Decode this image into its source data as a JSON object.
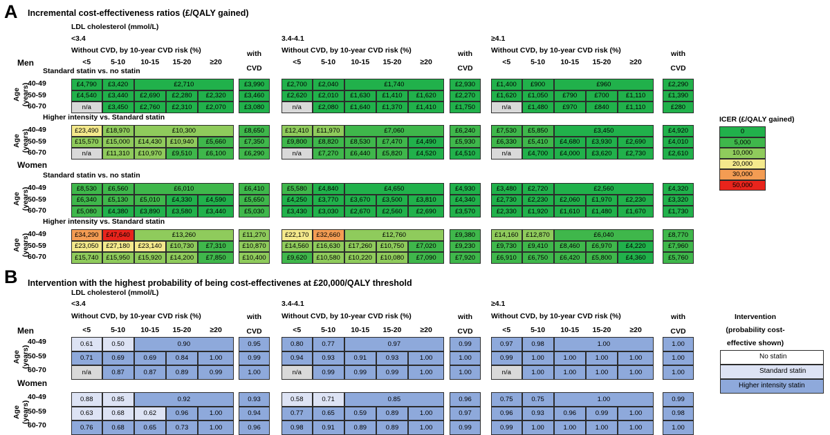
{
  "colors": {
    "na": "#d9d9d9",
    "icer_scale": [
      "#21b14b",
      "#3fb74b",
      "#8fcb5c",
      "#f4e98c",
      "#f39c53",
      "#e8241c"
    ],
    "intervention": {
      "none": "#ffffff",
      "standard": "#dde3f4",
      "higher": "#8ea9db"
    }
  },
  "chart_data": [
    {
      "type": "heatmap",
      "panel_letter": "A",
      "title": "Incremental cost-effectiveness ratios (£/QALY gained)",
      "ldl_label": "LDL cholesterol (mmol/L)",
      "ldl_groups": [
        "<3.4",
        "3.4-4.1",
        "≥4.1"
      ],
      "risk_header": "Without CVD, by 10-year CVD risk (%)",
      "risk_columns": [
        "<5",
        "5-10",
        "10-15",
        "15-20",
        "≥20"
      ],
      "with_cvd_label": [
        "with",
        "CVD"
      ],
      "age_groups": [
        "40-49",
        "50-59",
        "60-70"
      ],
      "age_label": [
        "Age",
        "(years)"
      ],
      "legend": {
        "title": "ICER (£/QALY gained)",
        "bins": [
          "0",
          "5,000",
          "10,000",
          "20,000",
          "30,000",
          "50,000"
        ]
      },
      "blocks": [
        {
          "sex": "Men",
          "comparison": "Standard statin vs. no statin",
          "groups": [
            [
              [
                "£4,790",
                "£3,420",
                "£2,710",
                null,
                null,
                "£3,990"
              ],
              [
                "£4,540",
                "£3,440",
                "£2,690",
                "£2,280",
                "£2,320",
                "£3,460"
              ],
              [
                "n/a",
                "£3,450",
                "£2,760",
                "£2,310",
                "£2,070",
                "£3,080"
              ]
            ],
            [
              [
                "£2,700",
                "£2,040",
                "£1,740",
                null,
                null,
                "£2,930"
              ],
              [
                "£2,620",
                "£2,010",
                "£1,630",
                "£1,410",
                "£1,620",
                "£2,270"
              ],
              [
                "n/a",
                "£2,080",
                "£1,640",
                "£1,370",
                "£1,410",
                "£1,750"
              ]
            ],
            [
              [
                "£1,400",
                "£900",
                "£960",
                null,
                null,
                "£2,290"
              ],
              [
                "£1,620",
                "£1,050",
                "£790",
                "£700",
                "£1,110",
                "£1,390"
              ],
              [
                "n/a",
                "£1,480",
                "£970",
                "£840",
                "£1,110",
                "£280"
              ]
            ]
          ]
        },
        {
          "sex": "",
          "comparison": "Higher intensity vs. Standard statin",
          "groups": [
            [
              [
                "£23,490",
                "£18,970",
                "£10,300",
                null,
                null,
                "£8,650"
              ],
              [
                "£15,570",
                "£15,000",
                "£14,430",
                "£10,940",
                "£5,660",
                "£7,350"
              ],
              [
                "n/a",
                "£11,310",
                "£10,970",
                "£9,510",
                "£6,100",
                "£6,290"
              ]
            ],
            [
              [
                "£12,410",
                "£11,970",
                "£7,060",
                null,
                null,
                "£6,240"
              ],
              [
                "£9,800",
                "£8,820",
                "£8,530",
                "£7,470",
                "£4,490",
                "£5,930"
              ],
              [
                "n/a",
                "£7,270",
                "£6,440",
                "£5,820",
                "£4,520",
                "£4,510"
              ]
            ],
            [
              [
                "£7,530",
                "£5,850",
                "£3,450",
                null,
                null,
                "£4,920"
              ],
              [
                "£6,330",
                "£5,410",
                "£4,680",
                "£3,930",
                "£2,690",
                "£4,010"
              ],
              [
                "n/a",
                "£4,700",
                "£4,000",
                "£3,620",
                "£2,730",
                "£2,610"
              ]
            ]
          ]
        },
        {
          "sex": "Women",
          "comparison": "Standard statin vs. no statin",
          "groups": [
            [
              [
                "£8,530",
                "£6,560",
                "£6,010",
                null,
                null,
                "£6,410"
              ],
              [
                "£6,340",
                "£5,130",
                "£5,010",
                "£4,330",
                "£4,590",
                "£5,650"
              ],
              [
                "£5,080",
                "£4,380",
                "£3,890",
                "£3,580",
                "£3,440",
                "£5,030"
              ]
            ],
            [
              [
                "£5,580",
                "£4,840",
                "£4,650",
                null,
                null,
                "£4,930"
              ],
              [
                "£4,250",
                "£3,770",
                "£3,670",
                "£3,500",
                "£3,810",
                "£4,340"
              ],
              [
                "£3,430",
                "£3,030",
                "£2,670",
                "£2,560",
                "£2,690",
                "£3,570"
              ]
            ],
            [
              [
                "£3,480",
                "£2,720",
                "£2,560",
                null,
                null,
                "£4,320"
              ],
              [
                "£2,730",
                "£2,230",
                "£2,060",
                "£1,970",
                "£2,230",
                "£3,320"
              ],
              [
                "£2,330",
                "£1,920",
                "£1,610",
                "£1,480",
                "£1,670",
                "£1,730"
              ]
            ]
          ]
        },
        {
          "sex": "",
          "comparison": "Higher intensity vs. Standard statin",
          "groups": [
            [
              [
                "£34,290",
                "£47,640",
                "£13,260",
                null,
                null,
                "£11,270"
              ],
              [
                "£23,050",
                "£27,180",
                "£23,140",
                "£10,730",
                "£7,310",
                "£10,870"
              ],
              [
                "£15,740",
                "£15,950",
                "£15,920",
                "£14,200",
                "£7,850",
                "£10,400"
              ]
            ],
            [
              [
                "£22,170",
                "£32,660",
                "£12,760",
                null,
                null,
                "£9,380"
              ],
              [
                "£14,560",
                "£16,630",
                "£17,260",
                "£10,750",
                "£7,020",
                "£9,230"
              ],
              [
                "£9,620",
                "£10,580",
                "£10,220",
                "£10,080",
                "£7,090",
                "£7,920"
              ]
            ],
            [
              [
                "£14,160",
                "£12,870",
                "£6,040",
                null,
                null,
                "£8,770"
              ],
              [
                "£9,730",
                "£9,410",
                "£8,460",
                "£6,970",
                "£4,220",
                "£7,960"
              ],
              [
                "£6,910",
                "£6,750",
                "£6,420",
                "£5,800",
                "£4,360",
                "£5,760"
              ]
            ]
          ]
        }
      ]
    },
    {
      "type": "heatmap",
      "panel_letter": "B",
      "title": "Intervention with the highest probability of being cost-effectivenes at £20,000/QALY threshold",
      "ldl_label": "LDL cholesterol (mmol/L)",
      "ldl_groups": [
        "<3.4",
        "3.4-4.1",
        "≥4.1"
      ],
      "risk_header": "Without CVD, by 10-year CVD risk (%)",
      "risk_columns": [
        "<5",
        "5-10",
        "10-15",
        "15-20",
        "≥20"
      ],
      "with_cvd_label": [
        "with",
        "CVD"
      ],
      "age_groups": [
        "40-49",
        "50-59",
        "60-70"
      ],
      "age_label": [
        "Age",
        "(years)"
      ],
      "legend": {
        "title": [
          "Intervention",
          "(probability cost-",
          "effective shown)"
        ],
        "items": [
          "No statin",
          "Standard statin",
          "Higher intensity statin"
        ]
      },
      "blocks": [
        {
          "sex": "Men",
          "groups": [
            [
              [
                [
                  "0.61",
                  "S"
                ],
                [
                  "0.50",
                  "S"
                ],
                [
                  "0.90",
                  "H"
                ],
                null,
                null,
                [
                  "0.95",
                  "H"
                ]
              ],
              [
                [
                  "0.71",
                  "H"
                ],
                [
                  "0.69",
                  "H"
                ],
                [
                  "0.69",
                  "H"
                ],
                [
                  "0.84",
                  "H"
                ],
                [
                  "1.00",
                  "H"
                ],
                [
                  "0.99",
                  "H"
                ]
              ],
              [
                [
                  "n/a",
                  "NA"
                ],
                [
                  "0.87",
                  "H"
                ],
                [
                  "0.87",
                  "H"
                ],
                [
                  "0.89",
                  "H"
                ],
                [
                  "0.99",
                  "H"
                ],
                [
                  "1.00",
                  "H"
                ]
              ]
            ],
            [
              [
                [
                  "0.80",
                  "H"
                ],
                [
                  "0.77",
                  "H"
                ],
                [
                  "0.97",
                  "H"
                ],
                null,
                null,
                [
                  "0.99",
                  "H"
                ]
              ],
              [
                [
                  "0.94",
                  "H"
                ],
                [
                  "0.93",
                  "H"
                ],
                [
                  "0.91",
                  "H"
                ],
                [
                  "0.93",
                  "H"
                ],
                [
                  "1.00",
                  "H"
                ],
                [
                  "1.00",
                  "H"
                ]
              ],
              [
                [
                  "n/a",
                  "NA"
                ],
                [
                  "0.99",
                  "H"
                ],
                [
                  "0.99",
                  "H"
                ],
                [
                  "0.99",
                  "H"
                ],
                [
                  "1.00",
                  "H"
                ],
                [
                  "1.00",
                  "H"
                ]
              ]
            ],
            [
              [
                [
                  "0.97",
                  "H"
                ],
                [
                  "0.98",
                  "H"
                ],
                [
                  "1.00",
                  "H"
                ],
                null,
                null,
                [
                  "1.00",
                  "H"
                ]
              ],
              [
                [
                  "0.99",
                  "H"
                ],
                [
                  "1.00",
                  "H"
                ],
                [
                  "1.00",
                  "H"
                ],
                [
                  "1.00",
                  "H"
                ],
                [
                  "1.00",
                  "H"
                ],
                [
                  "1.00",
                  "H"
                ]
              ],
              [
                [
                  "n/a",
                  "NA"
                ],
                [
                  "1.00",
                  "H"
                ],
                [
                  "1.00",
                  "H"
                ],
                [
                  "1.00",
                  "H"
                ],
                [
                  "1.00",
                  "H"
                ],
                [
                  "1.00",
                  "H"
                ]
              ]
            ]
          ]
        },
        {
          "sex": "Women",
          "groups": [
            [
              [
                [
                  "0.88",
                  "S"
                ],
                [
                  "0.85",
                  "S"
                ],
                [
                  "0.92",
                  "H"
                ],
                null,
                null,
                [
                  "0.93",
                  "H"
                ]
              ],
              [
                [
                  "0.63",
                  "S"
                ],
                [
                  "0.68",
                  "S"
                ],
                [
                  "0.62",
                  "S"
                ],
                [
                  "0.96",
                  "H"
                ],
                [
                  "1.00",
                  "H"
                ],
                [
                  "0.94",
                  "H"
                ]
              ],
              [
                [
                  "0.76",
                  "H"
                ],
                [
                  "0.68",
                  "H"
                ],
                [
                  "0.65",
                  "H"
                ],
                [
                  "0.73",
                  "H"
                ],
                [
                  "1.00",
                  "H"
                ],
                [
                  "0.96",
                  "H"
                ]
              ]
            ],
            [
              [
                [
                  "0.58",
                  "S"
                ],
                [
                  "0.71",
                  "S"
                ],
                [
                  "0.85",
                  "H"
                ],
                null,
                null,
                [
                  "0.96",
                  "H"
                ]
              ],
              [
                [
                  "0.77",
                  "H"
                ],
                [
                  "0.65",
                  "H"
                ],
                [
                  "0.59",
                  "H"
                ],
                [
                  "0.89",
                  "H"
                ],
                [
                  "1.00",
                  "H"
                ],
                [
                  "0.97",
                  "H"
                ]
              ],
              [
                [
                  "0.98",
                  "H"
                ],
                [
                  "0.91",
                  "H"
                ],
                [
                  "0.89",
                  "H"
                ],
                [
                  "0.89",
                  "H"
                ],
                [
                  "1.00",
                  "H"
                ],
                [
                  "0.99",
                  "H"
                ]
              ]
            ],
            [
              [
                [
                  "0.75",
                  "H"
                ],
                [
                  "0.75",
                  "H"
                ],
                [
                  "1.00",
                  "H"
                ],
                null,
                null,
                [
                  "0.99",
                  "H"
                ]
              ],
              [
                [
                  "0.96",
                  "H"
                ],
                [
                  "0.93",
                  "H"
                ],
                [
                  "0.96",
                  "H"
                ],
                [
                  "0.99",
                  "H"
                ],
                [
                  "1.00",
                  "H"
                ],
                [
                  "0.98",
                  "H"
                ]
              ],
              [
                [
                  "0.99",
                  "H"
                ],
                [
                  "1.00",
                  "H"
                ],
                [
                  "1.00",
                  "H"
                ],
                [
                  "1.00",
                  "H"
                ],
                [
                  "1.00",
                  "H"
                ],
                [
                  "1.00",
                  "H"
                ]
              ]
            ]
          ]
        }
      ]
    }
  ]
}
